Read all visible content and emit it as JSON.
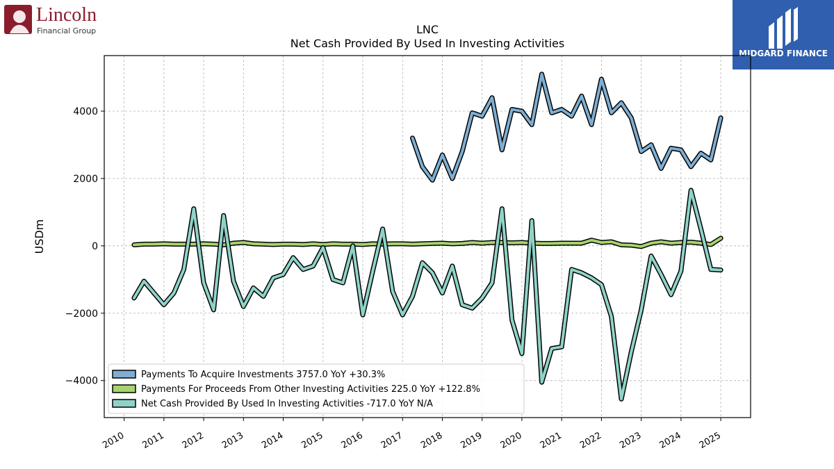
{
  "logos": {
    "left": {
      "name": "Lincoln",
      "sub": "Financial Group",
      "color": "#8a1c2b"
    },
    "right": {
      "name": "MIDGARD FINANCE",
      "color": "#2f5fae"
    }
  },
  "chart_data": {
    "type": "line",
    "title": "LNC",
    "subtitle": "Net Cash Provided By Used In Investing Activities",
    "xlabel": "",
    "ylabel": "USDm",
    "xlim": [
      2009.5,
      2025.75
    ],
    "ylim": [
      -5100,
      5650
    ],
    "yticks": [
      -4000,
      -2000,
      0,
      2000,
      4000
    ],
    "ytick_labels": [
      "−4000",
      "−2000",
      "0",
      "2000",
      "4000"
    ],
    "xticks": [
      2010,
      2011,
      2012,
      2013,
      2014,
      2015,
      2016,
      2017,
      2018,
      2019,
      2020,
      2021,
      2022,
      2023,
      2024,
      2025
    ],
    "xtick_labels": [
      "2010",
      "2011",
      "2012",
      "2013",
      "2014",
      "2015",
      "2016",
      "2017",
      "2018",
      "2019",
      "2020",
      "2021",
      "2022",
      "2023",
      "2024",
      "2025"
    ],
    "grid": true,
    "legend_position": "lower-left",
    "series": [
      {
        "name": "Payments To Acquire Investments",
        "legend_label": "Payments To Acquire Investments  3757.0 YoY +30.3%",
        "color": "#7eaed3",
        "x": [
          2017.25,
          2017.5,
          2017.75,
          2018.0,
          2018.25,
          2018.5,
          2018.75,
          2019.0,
          2019.25,
          2019.5,
          2019.75,
          2020.0,
          2020.25,
          2020.5,
          2020.75,
          2021.0,
          2021.25,
          2021.5,
          2021.75,
          2022.0,
          2022.25,
          2022.5,
          2022.75,
          2023.0,
          2023.25,
          2023.5,
          2023.75,
          2024.0,
          2024.25,
          2024.5,
          2024.75,
          2025.0
        ],
        "y": [
          3200,
          2350,
          1950,
          2700,
          2000,
          2800,
          3950,
          3850,
          4400,
          2850,
          4050,
          4000,
          3600,
          5100,
          3950,
          4050,
          3850,
          4450,
          3600,
          4950,
          3950,
          4250,
          3800,
          2800,
          3000,
          2300,
          2900,
          2850,
          2350,
          2750,
          2550,
          3800
        ]
      },
      {
        "name": "Payments For Proceeds From Other Investing Activities",
        "legend_label": "Payments For Proceeds From Other Investing Activities  225.0 YoY +122.8%",
        "color": "#a6d46e",
        "x": [
          2010.25,
          2010.5,
          2010.75,
          2011.0,
          2011.25,
          2011.5,
          2011.75,
          2012.0,
          2012.25,
          2012.5,
          2012.75,
          2013.0,
          2013.25,
          2013.5,
          2013.75,
          2014.0,
          2014.25,
          2014.5,
          2014.75,
          2015.0,
          2015.25,
          2015.5,
          2015.75,
          2016.0,
          2016.25,
          2016.5,
          2016.75,
          2017.0,
          2017.25,
          2017.5,
          2017.75,
          2018.0,
          2018.25,
          2018.5,
          2018.75,
          2019.0,
          2019.25,
          2019.5,
          2019.75,
          2020.0,
          2020.25,
          2020.5,
          2020.75,
          2021.0,
          2021.25,
          2021.5,
          2021.75,
          2022.0,
          2022.25,
          2022.5,
          2022.75,
          2023.0,
          2023.25,
          2023.5,
          2023.75,
          2024.0,
          2024.25,
          2024.5,
          2024.75,
          2025.0
        ],
        "y": [
          30,
          50,
          50,
          60,
          50,
          50,
          50,
          60,
          50,
          30,
          80,
          100,
          60,
          50,
          40,
          50,
          50,
          40,
          60,
          40,
          60,
          50,
          50,
          40,
          60,
          50,
          60,
          60,
          50,
          60,
          70,
          80,
          60,
          70,
          100,
          80,
          100,
          100,
          90,
          100,
          80,
          70,
          70,
          80,
          80,
          80,
          170,
          100,
          120,
          30,
          20,
          -20,
          80,
          120,
          80,
          100,
          110,
          80,
          40,
          225
        ]
      },
      {
        "name": "Net Cash Provided By Used In Investing Activities",
        "legend_label": "Net Cash Provided By Used In Investing Activities  -717.0 YoY N/A",
        "color": "#8fd3c8",
        "x": [
          2010.25,
          2010.5,
          2010.75,
          2011.0,
          2011.25,
          2011.5,
          2011.75,
          2012.0,
          2012.25,
          2012.5,
          2012.75,
          2013.0,
          2013.25,
          2013.5,
          2013.75,
          2014.0,
          2014.25,
          2014.5,
          2014.75,
          2015.0,
          2015.25,
          2015.5,
          2015.75,
          2016.0,
          2016.25,
          2016.5,
          2016.75,
          2017.0,
          2017.25,
          2017.5,
          2017.75,
          2018.0,
          2018.25,
          2018.5,
          2018.75,
          2019.0,
          2019.25,
          2019.5,
          2019.75,
          2020.0,
          2020.25,
          2020.5,
          2020.75,
          2021.0,
          2021.25,
          2021.5,
          2021.75,
          2022.0,
          2022.25,
          2022.5,
          2022.75,
          2023.0,
          2023.25,
          2023.5,
          2023.75,
          2024.0,
          2024.25,
          2024.5,
          2024.75,
          2025.0
        ],
        "y": [
          -1550,
          -1050,
          -1400,
          -1750,
          -1400,
          -700,
          1100,
          -1100,
          -1900,
          900,
          -1050,
          -1800,
          -1250,
          -1500,
          -950,
          -850,
          -350,
          -700,
          -600,
          -50,
          -1000,
          -1100,
          0,
          -2050,
          -750,
          500,
          -1350,
          -2050,
          -1500,
          -500,
          -800,
          -1400,
          -600,
          -1750,
          -1850,
          -1550,
          -1100,
          1100,
          -2200,
          -3200,
          750,
          -4050,
          -3050,
          -3000,
          -700,
          -800,
          -950,
          -1150,
          -2100,
          -4550,
          -3150,
          -1900,
          -300,
          -850,
          -1450,
          -750,
          1650,
          500,
          -700,
          -717
        ]
      }
    ]
  }
}
